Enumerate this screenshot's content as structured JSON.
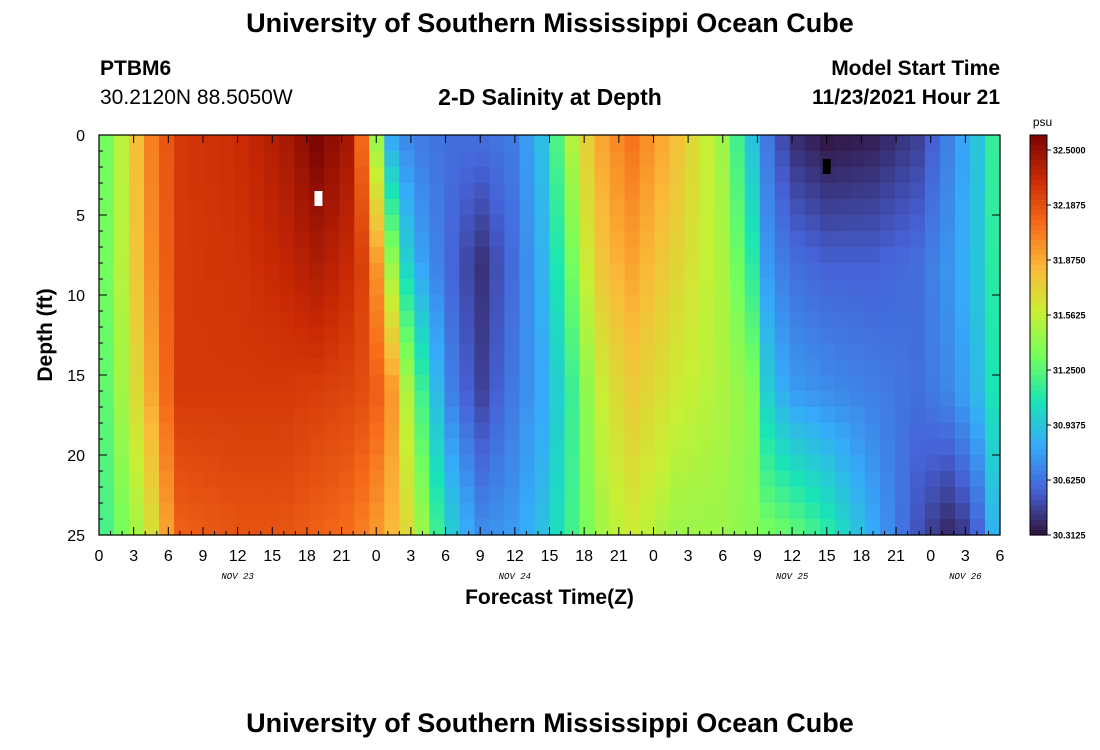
{
  "header": {
    "title": "University of Southern Mississippi Ocean Cube",
    "station_id": "PTBM6",
    "station_coords": "30.2120N  88.5050W",
    "chart_title": "2-D Salinity at Depth",
    "model_start_label": "Model Start Time",
    "model_start_value": "11/23/2021 Hour 21"
  },
  "footer": {
    "title": "University of Southern Mississippi Ocean Cube"
  },
  "chart_data": {
    "type": "heatmap",
    "xlabel": "Forecast Time(Z)",
    "ylabel": "Depth (ft)",
    "xlim": [
      0,
      78
    ],
    "ylim": [
      0,
      25
    ],
    "x_ticks": [
      "0",
      "3",
      "6",
      "9",
      "12",
      "15",
      "18",
      "21",
      "0",
      "3",
      "6",
      "9",
      "12",
      "15",
      "18",
      "21",
      "0",
      "3",
      "6",
      "9",
      "12",
      "15",
      "18",
      "21",
      "0",
      "3",
      "6"
    ],
    "y_ticks": [
      0,
      5,
      10,
      15,
      20,
      25
    ],
    "date_labels": [
      {
        "text": "NOV 23",
        "hour": 12
      },
      {
        "text": "NOV 24",
        "hour": 36
      },
      {
        "text": "NOV 25",
        "hour": 60
      },
      {
        "text": "NOV 26",
        "hour": 75
      }
    ],
    "colorbar": {
      "unit": "psu",
      "min": 30.3125,
      "max": 32.5,
      "tick_labels": [
        "32.5000",
        "32.1875",
        "31.8750",
        "31.5625",
        "31.2500",
        "30.9375",
        "30.6250",
        "30.3125"
      ],
      "colors": [
        "#30123b",
        "#4662d7",
        "#36aaf9",
        "#1ae4b6",
        "#72fe5e",
        "#c8ef34",
        "#faba39",
        "#f66b19",
        "#ca2a04",
        "#7a0403"
      ]
    },
    "markers": [
      {
        "hour": 19,
        "depth": 4,
        "color": "#ffffff"
      },
      {
        "hour": 63,
        "depth": 2,
        "color": "#000000"
      }
    ],
    "field_samples": [
      {
        "hour": 0,
        "profile": [
          31.2,
          31.2,
          31.15,
          31.1
        ]
      },
      {
        "hour": 1.5,
        "profile": [
          31.4,
          31.4,
          31.35,
          31.25
        ]
      },
      {
        "hour": 4,
        "profile": [
          31.9,
          31.85,
          31.75,
          31.5
        ]
      },
      {
        "hour": 7,
        "profile": [
          32.2,
          32.2,
          32.2,
          32.05
        ]
      },
      {
        "hour": 12,
        "profile": [
          32.25,
          32.22,
          32.2,
          32.1
        ]
      },
      {
        "hour": 16,
        "profile": [
          32.35,
          32.28,
          32.2,
          32.1
        ]
      },
      {
        "hour": 19,
        "profile": [
          32.5,
          32.35,
          32.18,
          32.05
        ]
      },
      {
        "hour": 22,
        "profile": [
          32.35,
          32.25,
          32.15,
          32.0
        ]
      },
      {
        "hour": 23.5,
        "profile": [
          31.7,
          32.1,
          32.1,
          31.9
        ]
      },
      {
        "hour": 25,
        "profile": [
          30.8,
          31.5,
          32.0,
          31.8
        ]
      },
      {
        "hour": 27,
        "profile": [
          30.65,
          30.85,
          31.35,
          31.6
        ]
      },
      {
        "hour": 30,
        "profile": [
          30.6,
          30.6,
          30.7,
          31.0
        ]
      },
      {
        "hour": 33,
        "profile": [
          30.6,
          30.4,
          30.45,
          30.7
        ]
      },
      {
        "hour": 36,
        "profile": [
          30.65,
          30.6,
          30.65,
          30.75
        ]
      },
      {
        "hour": 38.5,
        "profile": [
          30.9,
          30.85,
          30.8,
          30.9
        ]
      },
      {
        "hour": 40.5,
        "profile": [
          31.4,
          31.2,
          31.05,
          31.1
        ]
      },
      {
        "hour": 43,
        "profile": [
          31.8,
          31.7,
          31.5,
          31.4
        ]
      },
      {
        "hour": 46,
        "profile": [
          32.0,
          31.85,
          31.7,
          31.55
        ]
      },
      {
        "hour": 50,
        "profile": [
          31.75,
          31.65,
          31.55,
          31.4
        ]
      },
      {
        "hour": 54,
        "profile": [
          31.4,
          31.45,
          31.45,
          31.4
        ]
      },
      {
        "hour": 56.5,
        "profile": [
          30.9,
          31.1,
          31.35,
          31.35
        ]
      },
      {
        "hour": 58,
        "profile": [
          30.6,
          30.7,
          30.9,
          31.3
        ]
      },
      {
        "hour": 60,
        "profile": [
          30.4,
          30.6,
          30.75,
          31.25
        ]
      },
      {
        "hour": 63,
        "profile": [
          30.32,
          30.55,
          30.7,
          31.1
        ]
      },
      {
        "hour": 67,
        "profile": [
          30.35,
          30.55,
          30.65,
          30.8
        ]
      },
      {
        "hour": 71,
        "profile": [
          30.45,
          30.6,
          30.6,
          30.5
        ]
      },
      {
        "hour": 74,
        "profile": [
          30.7,
          30.75,
          30.7,
          30.35
        ]
      },
      {
        "hour": 76.5,
        "profile": [
          30.95,
          30.95,
          30.9,
          30.6
        ]
      },
      {
        "hour": 78,
        "profile": [
          31.25,
          31.2,
          31.15,
          31.0
        ]
      }
    ],
    "field_sample_depths": [
      0,
      8,
      16,
      25
    ]
  }
}
